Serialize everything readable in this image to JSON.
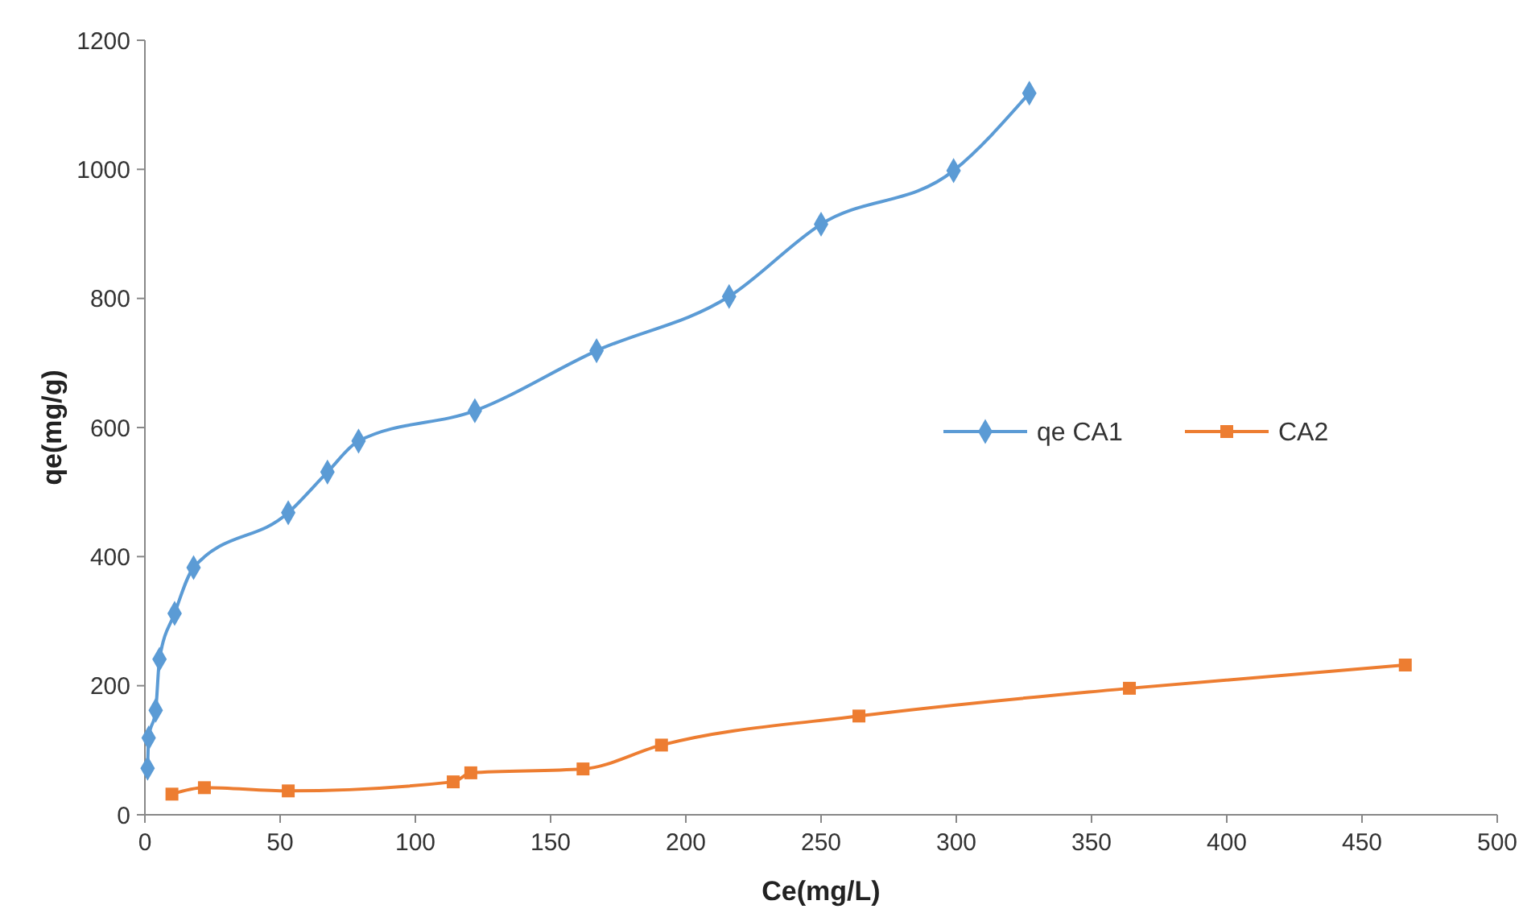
{
  "chart_data": {
    "type": "line",
    "xlabel": "Ce(mg/L)",
    "ylabel": "qe(mg/g)",
    "xlim": [
      0,
      500
    ],
    "xticks": [
      0,
      50,
      100,
      150,
      200,
      250,
      300,
      350,
      400,
      450,
      500
    ],
    "ylim": [
      0,
      1200
    ],
    "yticks": [
      0,
      200,
      400,
      600,
      800,
      1000,
      1200
    ],
    "grid": false,
    "legend": "right",
    "line_style": "solid",
    "series": [
      {
        "name": "qe CA1",
        "color": "#5b9bd5",
        "marker": "diamond",
        "x": [
          1,
          1.4,
          4,
          5.4,
          11,
          18,
          53,
          67.5,
          79,
          122,
          167,
          216,
          250,
          299,
          327
        ],
        "values": [
          72,
          119,
          162,
          241,
          312,
          383,
          468,
          531,
          579,
          626,
          719,
          803,
          915,
          998,
          1118
        ]
      },
      {
        "name": "CA2",
        "color": "#ed7d31",
        "marker": "square",
        "x": [
          10,
          22,
          53,
          114,
          120.5,
          162,
          191,
          264,
          364,
          466
        ],
        "values": [
          32,
          42,
          37,
          51,
          65,
          71,
          108,
          153,
          196,
          232
        ]
      }
    ]
  }
}
